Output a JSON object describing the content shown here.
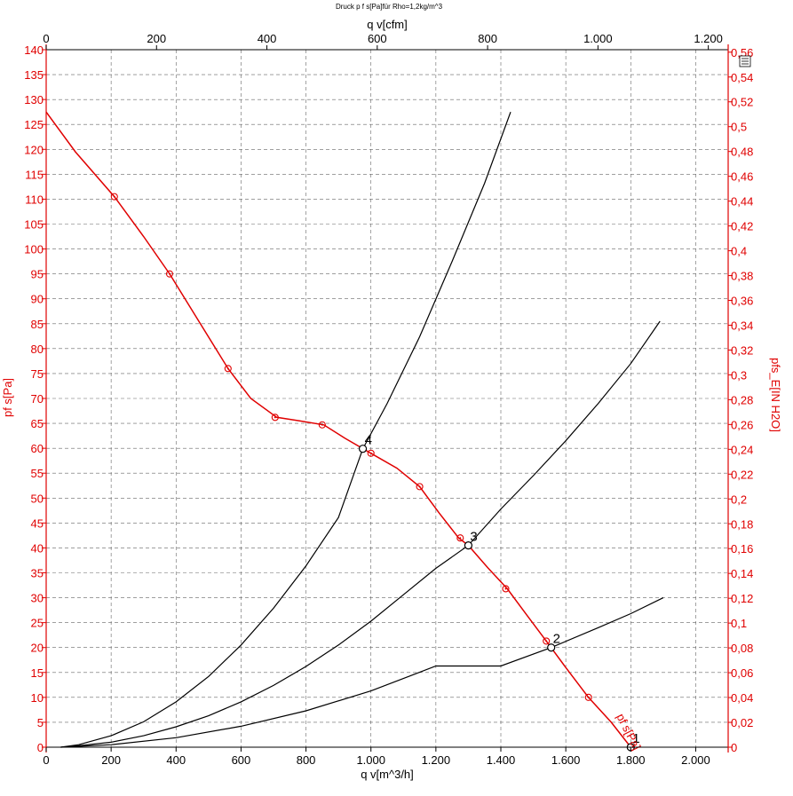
{
  "chart_data": {
    "type": "line",
    "title": "Druck p f s[Pa]für Rho=1,2kg/m^3",
    "xlabel": "q v[m^3/h]",
    "x2label": "q v[cfm]",
    "ylabel": "pf s[Pa]",
    "y2label": "pfs_E[IN H2O]",
    "xlim": [
      0,
      2100
    ],
    "ylim": [
      0,
      140
    ],
    "x2lim": [
      0,
      1236
    ],
    "y2lim": [
      0,
      0.562
    ],
    "grid": true,
    "x_ticks": [
      "0",
      "200",
      "400",
      "600",
      "800",
      "1.000",
      "1.200",
      "1.400",
      "1.600",
      "1.800",
      "2.000"
    ],
    "x2_ticks": [
      "0",
      "200",
      "400",
      "600",
      "800",
      "1.000",
      "1.200"
    ],
    "y_ticks": [
      "0",
      "5",
      "10",
      "15",
      "20",
      "25",
      "30",
      "35",
      "40",
      "45",
      "50",
      "55",
      "60",
      "65",
      "70",
      "75",
      "80",
      "85",
      "90",
      "95",
      "100",
      "105",
      "110",
      "115",
      "120",
      "125",
      "130",
      "135",
      "140"
    ],
    "y2_ticks": [
      "0",
      "0,02",
      "0,04",
      "0,06",
      "0,08",
      "0,1",
      "0,12",
      "0,14",
      "0,16",
      "0,18",
      "0,2",
      "0,22",
      "0,24",
      "0,26",
      "0,28",
      "0,3",
      "0,32",
      "0,34",
      "0,36",
      "0,38",
      "0,4",
      "0,42",
      "0,44",
      "0,46",
      "0,48",
      "0,5",
      "0,52",
      "0,54",
      "0,56"
    ],
    "series": [
      {
        "name": "pf s[Pa]",
        "color": "#e00000",
        "x": [
          0,
          90,
          210,
          300,
          380,
          470,
          560,
          630,
          710,
          780,
          855,
          920,
          1000,
          1080,
          1150,
          1210,
          1270,
          1300,
          1360,
          1420,
          1480,
          1540,
          1600,
          1670,
          1740,
          1800
        ],
        "y": [
          127.5,
          119.5,
          110.5,
          102.5,
          95,
          85.5,
          76,
          70,
          66.2,
          65.5,
          64.7,
          62,
          59,
          56,
          52.3,
          47,
          42,
          40.5,
          36,
          31.8,
          26.5,
          21.3,
          16,
          10,
          5,
          0
        ],
        "markers_x": [
          210,
          380,
          560,
          705,
          850,
          1000,
          1150,
          1275,
          1415,
          1540,
          1670
        ],
        "markers_y": [
          110.5,
          95,
          76,
          66.2,
          64.7,
          59,
          52.3,
          42,
          31.8,
          21.3,
          10
        ]
      },
      {
        "name": "",
        "color": "#000000",
        "x": [
          45,
          100,
          200,
          300,
          400,
          500,
          600,
          700,
          800,
          900,
          975,
          1050,
          1150,
          1250,
          1350,
          1430
        ],
        "y": [
          0,
          0.5,
          2.3,
          5.1,
          9.1,
          14.2,
          20.5,
          27.9,
          36.4,
          46.1,
          59.9,
          69,
          82.4,
          97.5,
          113.2,
          127.5
        ]
      },
      {
        "name": "",
        "color": "#000000",
        "x": [
          45,
          100,
          200,
          300,
          400,
          500,
          600,
          700,
          800,
          900,
          1000,
          1100,
          1200,
          1300,
          1400,
          1500,
          1600,
          1700,
          1800,
          1890
        ],
        "y": [
          0,
          0.3,
          1,
          2.3,
          4.1,
          6.3,
          9.1,
          12.4,
          16.2,
          20.5,
          25.3,
          30.6,
          35.9,
          40.5,
          47.8,
          54.5,
          61.5,
          69,
          77,
          85.5
        ]
      },
      {
        "name": "",
        "color": "#000000",
        "x": [
          45,
          200,
          400,
          600,
          800,
          1000,
          1200,
          1400,
          1555,
          1700,
          1800,
          1900
        ],
        "y": [
          0,
          0.5,
          1.9,
          4.2,
          7.3,
          11.3,
          16.3,
          16.3,
          20,
          24,
          26.8,
          30
        ]
      }
    ],
    "operating_points": [
      {
        "label": "1",
        "x": 1800,
        "y": 0
      },
      {
        "label": "2",
        "x": 1555,
        "y": 20
      },
      {
        "label": "3",
        "x": 1300,
        "y": 40.5
      },
      {
        "label": "4",
        "x": 975,
        "y": 59.9
      }
    ],
    "curve_label": "pf s[Pa]"
  }
}
